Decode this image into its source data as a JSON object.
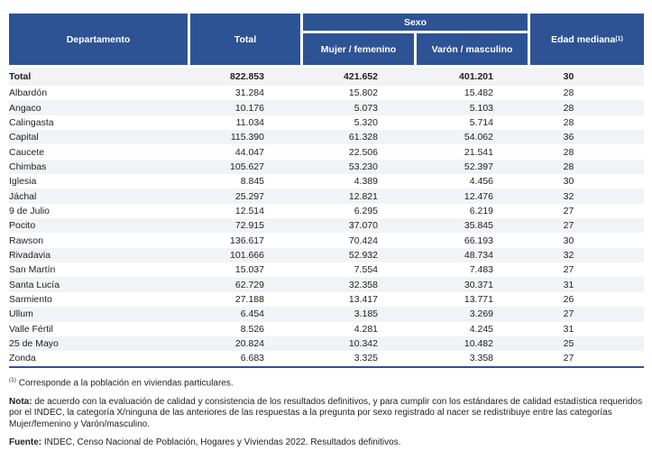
{
  "header": {
    "departamento": "Departamento",
    "total": "Total",
    "sexo": "Sexo",
    "mujer": "Mujer / femenino",
    "varon": "Varón / masculino",
    "edad": "Edad mediana",
    "edad_sup": "(1)"
  },
  "total_row": {
    "name": "Total",
    "total": "822.853",
    "mujer": "421.652",
    "varon": "401.201",
    "edad": "30"
  },
  "rows": [
    {
      "name": "Albardón",
      "total": "31.284",
      "mujer": "15.802",
      "varon": "15.482",
      "edad": "28"
    },
    {
      "name": "Angaco",
      "total": "10.176",
      "mujer": "5.073",
      "varon": "5.103",
      "edad": "28"
    },
    {
      "name": "Calingasta",
      "total": "11.034",
      "mujer": "5.320",
      "varon": "5.714",
      "edad": "28"
    },
    {
      "name": "Capital",
      "total": "115.390",
      "mujer": "61.328",
      "varon": "54.062",
      "edad": "36"
    },
    {
      "name": "Caucete",
      "total": "44.047",
      "mujer": "22.506",
      "varon": "21.541",
      "edad": "28"
    },
    {
      "name": "Chimbas",
      "total": "105.627",
      "mujer": "53.230",
      "varon": "52.397",
      "edad": "28"
    },
    {
      "name": "Iglesia",
      "total": "8.845",
      "mujer": "4.389",
      "varon": "4.456",
      "edad": "30"
    },
    {
      "name": "Jáchal",
      "total": "25.297",
      "mujer": "12.821",
      "varon": "12.476",
      "edad": "32"
    },
    {
      "name": "9 de Julio",
      "total": "12.514",
      "mujer": "6.295",
      "varon": "6.219",
      "edad": "27"
    },
    {
      "name": "Pocito",
      "total": "72.915",
      "mujer": "37.070",
      "varon": "35.845",
      "edad": "27"
    },
    {
      "name": "Rawson",
      "total": "136.617",
      "mujer": "70.424",
      "varon": "66.193",
      "edad": "30"
    },
    {
      "name": "Rivadavia",
      "total": "101.666",
      "mujer": "52.932",
      "varon": "48.734",
      "edad": "32"
    },
    {
      "name": "San Martín",
      "total": "15.037",
      "mujer": "7.554",
      "varon": "7.483",
      "edad": "27"
    },
    {
      "name": "Santa Lucía",
      "total": "62.729",
      "mujer": "32.358",
      "varon": "30.371",
      "edad": "31"
    },
    {
      "name": "Sarmiento",
      "total": "27.188",
      "mujer": "13.417",
      "varon": "13.771",
      "edad": "26"
    },
    {
      "name": "Ullum",
      "total": "6.454",
      "mujer": "3.185",
      "varon": "3.269",
      "edad": "27"
    },
    {
      "name": "Valle Fértil",
      "total": "8.526",
      "mujer": "4.281",
      "varon": "4.245",
      "edad": "31"
    },
    {
      "name": "25 de Mayo",
      "total": "20.824",
      "mujer": "10.342",
      "varon": "10.482",
      "edad": "25"
    },
    {
      "name": "Zonda",
      "total": "6.683",
      "mujer": "3.325",
      "varon": "3.358",
      "edad": "27"
    }
  ],
  "notes": {
    "footnote_sup": "(1)",
    "footnote": " Corresponde a la población en viviendas particulares.",
    "nota_label": "Nota:",
    "nota": " de acuerdo con la evaluación de calidad y consistencia de los resultados definitivos, y para cumplir con los estándares de calidad estadística requeridos por el INDEC, la categoría X/ninguna de las anteriores de las respuestas a la pregunta por sexo registrado al nacer se redistribuye entre las categorías Mujer/femenino y Varón/masculino.",
    "fuente_label": "Fuente:",
    "fuente": " INDEC, Censo Nacional de Población, Hogares y Viviendas 2022. Resultados definitivos."
  }
}
